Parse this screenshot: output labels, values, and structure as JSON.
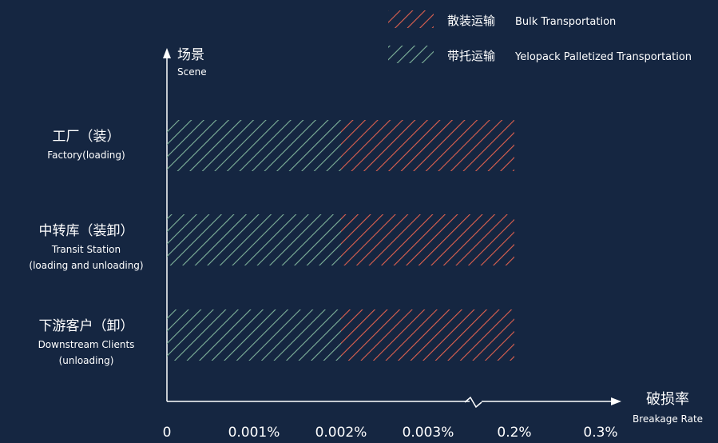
{
  "chart_data": {
    "type": "bar",
    "orientation": "horizontal",
    "stacked": true,
    "categories": [
      {
        "zh": "工厂（装）",
        "en": [
          "Factory(loading)"
        ]
      },
      {
        "zh": "中转库（装卸）",
        "en": [
          "Transit Station",
          "(loading and unloading)"
        ]
      },
      {
        "zh": "下游客户（卸）",
        "en": [
          "Downstream Clients",
          "(unloading)"
        ]
      }
    ],
    "series": [
      {
        "name_zh": "带托运输",
        "name_en": "Yelopack Palletized Transportation",
        "color": "#7fb39b",
        "values": [
          0.002,
          0.002,
          0.002
        ]
      },
      {
        "name_zh": "散装运输",
        "name_en": "Bulk Transportation",
        "color": "#e0614f",
        "values": [
          0.2,
          0.2,
          0.2
        ]
      }
    ],
    "x_ticks": [
      "0",
      "0.001%",
      "0.002%",
      "0.003%",
      "0.2%",
      "0.3%"
    ],
    "x_tick_values": [
      0,
      0.001,
      0.002,
      0.003,
      0.2,
      0.3
    ],
    "x_axis_break": "between 0.003% and 0.2%",
    "xlabel_zh": "破损率",
    "xlabel_en": "Breakage Rate",
    "ylabel_zh": "场景",
    "ylabel_en": "Scene",
    "legend_position": "top-right",
    "grid": false
  },
  "colors": {
    "background": "#152641",
    "axis": "#ffffff",
    "text": "#ffffff"
  }
}
